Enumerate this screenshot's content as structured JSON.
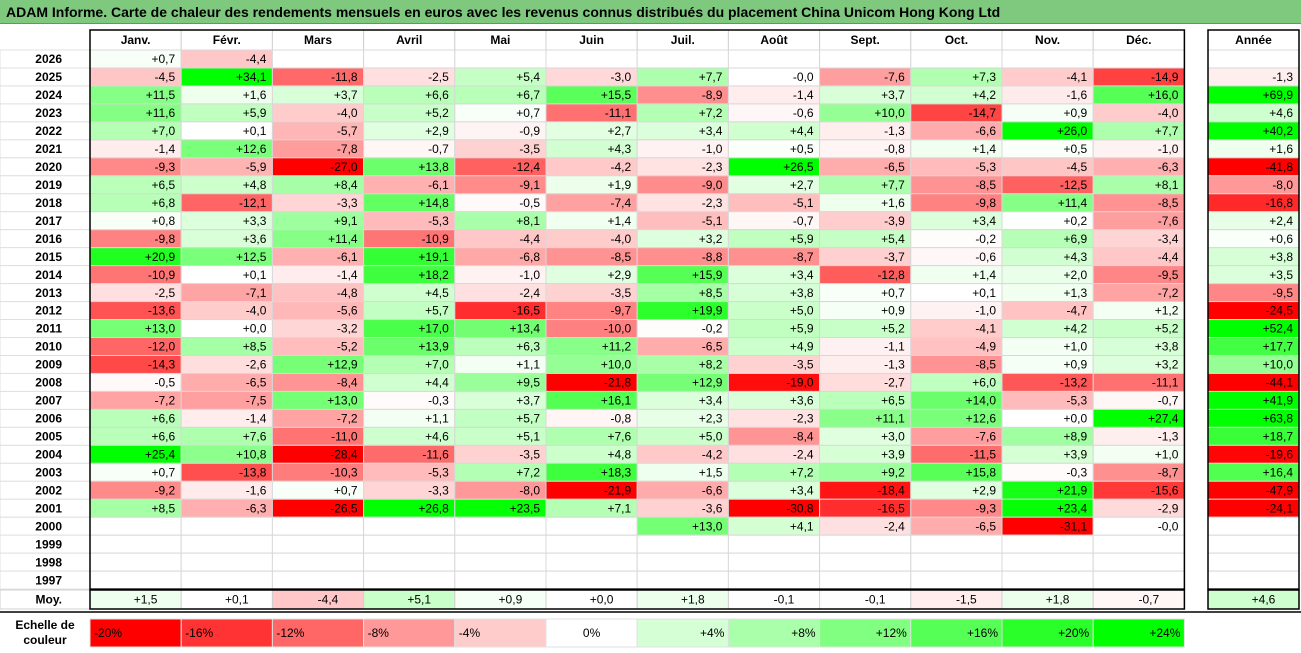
{
  "title": "ADAM Informe. Carte de chaleur des rendements mensuels en euros avec les revenus connus distribués du placement China Unicom Hong Kong Ltd",
  "chart_data": {
    "type": "heatmap",
    "months": [
      "Janv.",
      "Févr.",
      "Mars",
      "Avril",
      "Mai",
      "Juin",
      "Juil.",
      "Août",
      "Sept.",
      "Oct.",
      "Nov.",
      "Déc."
    ],
    "year_column_label": "Année",
    "rows": [
      {
        "year": "2026",
        "values": [
          "+0,7",
          "-4,4",
          "",
          "",
          "",
          "",
          "",
          "",
          "",
          "",
          "",
          ""
        ],
        "annual": ""
      },
      {
        "year": "2025",
        "values": [
          "-4,5",
          "+34,1",
          "-11,8",
          "-2,5",
          "+5,4",
          "-3,0",
          "+7,7",
          "-0,0",
          "-7,6",
          "+7,3",
          "-4,1",
          "-14,9"
        ],
        "annual": "-1,3"
      },
      {
        "year": "2024",
        "values": [
          "+11,5",
          "+1,6",
          "+3,7",
          "+6,6",
          "+6,7",
          "+15,5",
          "-8,9",
          "-1,4",
          "+3,7",
          "+4,2",
          "-1,6",
          "+16,0"
        ],
        "annual": "+69,9"
      },
      {
        "year": "2023",
        "values": [
          "+11,6",
          "+5,9",
          "-4,0",
          "+5,2",
          "+0,7",
          "-11,1",
          "+7,2",
          "-0,6",
          "+10,0",
          "-14,7",
          "+0,9",
          "-4,0"
        ],
        "annual": "+4,6"
      },
      {
        "year": "2022",
        "values": [
          "+7,0",
          "+0,1",
          "-5,7",
          "+2,9",
          "-0,9",
          "+2,7",
          "+3,4",
          "+4,4",
          "-1,3",
          "-6,6",
          "+26,0",
          "+7,7"
        ],
        "annual": "+40,2"
      },
      {
        "year": "2021",
        "values": [
          "-1,4",
          "+12,6",
          "-7,8",
          "-0,7",
          "-3,5",
          "+4,3",
          "-1,0",
          "+0,5",
          "-0,8",
          "+1,4",
          "+0,5",
          "-1,0"
        ],
        "annual": "+1,6"
      },
      {
        "year": "2020",
        "values": [
          "-9,3",
          "-5,9",
          "-27,0",
          "+13,8",
          "-12,4",
          "-4,2",
          "-2,3",
          "+26,5",
          "-6,5",
          "-5,3",
          "-4,5",
          "-6,3"
        ],
        "annual": "-41,8"
      },
      {
        "year": "2019",
        "values": [
          "+6,5",
          "+4,8",
          "+8,4",
          "-6,1",
          "-9,1",
          "+1,9",
          "-9,0",
          "+2,7",
          "+7,7",
          "-8,5",
          "-12,5",
          "+8,1"
        ],
        "annual": "-8,0"
      },
      {
        "year": "2018",
        "values": [
          "+6,8",
          "-12,1",
          "-3,3",
          "+14,8",
          "-0,5",
          "-7,4",
          "-2,3",
          "-5,1",
          "+1,6",
          "-9,8",
          "+11,4",
          "-8,5"
        ],
        "annual": "-16,8"
      },
      {
        "year": "2017",
        "values": [
          "+0,8",
          "+3,3",
          "+9,1",
          "-5,3",
          "+8,1",
          "+1,4",
          "-5,1",
          "-0,7",
          "-3,9",
          "+3,4",
          "+0,2",
          "-7,6"
        ],
        "annual": "+2,4"
      },
      {
        "year": "2016",
        "values": [
          "-9,8",
          "+3,6",
          "+11,4",
          "-10,9",
          "-4,4",
          "-4,0",
          "+3,2",
          "+5,9",
          "+5,4",
          "-0,2",
          "+6,9",
          "-3,4"
        ],
        "annual": "+0,6"
      },
      {
        "year": "2015",
        "values": [
          "+20,9",
          "+12,5",
          "-6,1",
          "+19,1",
          "-6,8",
          "-8,5",
          "-8,8",
          "-8,7",
          "-3,7",
          "-0,6",
          "+4,3",
          "-4,4"
        ],
        "annual": "+3,8"
      },
      {
        "year": "2014",
        "values": [
          "-10,9",
          "+0,1",
          "-1,4",
          "+18,2",
          "-1,0",
          "+2,9",
          "+15,9",
          "+3,4",
          "-12,8",
          "+1,4",
          "+2,0",
          "-9,5"
        ],
        "annual": "+3,5"
      },
      {
        "year": "2013",
        "values": [
          "-2,5",
          "-7,1",
          "-4,8",
          "+4,5",
          "-2,4",
          "-3,5",
          "+8,5",
          "+3,8",
          "+0,7",
          "+0,1",
          "+1,3",
          "-7,2"
        ],
        "annual": "-9,5"
      },
      {
        "year": "2012",
        "values": [
          "-13,6",
          "-4,0",
          "-5,6",
          "+5,7",
          "-16,5",
          "-9,7",
          "+19,9",
          "+5,0",
          "+0,9",
          "-1,0",
          "-4,7",
          "+1,2"
        ],
        "annual": "-24,5"
      },
      {
        "year": "2011",
        "values": [
          "+13,0",
          "+0,0",
          "-3,2",
          "+17,0",
          "+13,4",
          "-10,0",
          "-0,2",
          "+5,9",
          "+5,2",
          "-4,1",
          "+4,2",
          "+5,2"
        ],
        "annual": "+52,4"
      },
      {
        "year": "2010",
        "values": [
          "-12,0",
          "+8,5",
          "-5,2",
          "+13,9",
          "+6,3",
          "+11,2",
          "-6,5",
          "+4,9",
          "-1,1",
          "-4,9",
          "+1,0",
          "+3,8"
        ],
        "annual": "+17,7"
      },
      {
        "year": "2009",
        "values": [
          "-14,3",
          "-2,6",
          "+12,9",
          "+7,0",
          "+1,1",
          "+10,0",
          "+8,2",
          "-3,5",
          "-1,3",
          "-8,5",
          "+0,9",
          "+3,2"
        ],
        "annual": "+10,0"
      },
      {
        "year": "2008",
        "values": [
          "-0,5",
          "-6,5",
          "-8,4",
          "+4,4",
          "+9,5",
          "-21,8",
          "+12,9",
          "-19,0",
          "-2,7",
          "+6,0",
          "-13,2",
          "-11,1"
        ],
        "annual": "-44,1"
      },
      {
        "year": "2007",
        "values": [
          "-7,2",
          "-7,5",
          "+13,0",
          "-0,3",
          "+3,7",
          "+16,1",
          "+3,4",
          "+3,6",
          "+6,5",
          "+14,0",
          "-5,3",
          "-0,7"
        ],
        "annual": "+41,9"
      },
      {
        "year": "2006",
        "values": [
          "+6,6",
          "-1,4",
          "-7,2",
          "+1,1",
          "+5,7",
          "-0,8",
          "+2,3",
          "-2,3",
          "+11,1",
          "+12,6",
          "+0,0",
          "+27,4"
        ],
        "annual": "+63,8"
      },
      {
        "year": "2005",
        "values": [
          "+6,6",
          "+7,6",
          "-11,0",
          "+4,6",
          "+5,1",
          "+7,6",
          "+5,0",
          "-8,4",
          "+3,0",
          "-7,6",
          "+8,9",
          "-1,3"
        ],
        "annual": "+18,7"
      },
      {
        "year": "2004",
        "values": [
          "+25,4",
          "+10,8",
          "-28,4",
          "-11,6",
          "-3,5",
          "+4,8",
          "-4,2",
          "-2,4",
          "+3,9",
          "-11,5",
          "+3,9",
          "+1,0"
        ],
        "annual": "-19,6"
      },
      {
        "year": "2003",
        "values": [
          "+0,7",
          "-13,8",
          "-10,3",
          "-5,3",
          "+7,2",
          "+18,3",
          "+1,5",
          "+7,2",
          "+9,2",
          "+15,8",
          "-0,3",
          "-8,7"
        ],
        "annual": "+16,4"
      },
      {
        "year": "2002",
        "values": [
          "-9,2",
          "-1,6",
          "+0,7",
          "-3,3",
          "-8,0",
          "-21,9",
          "-6,6",
          "+3,4",
          "-18,4",
          "+2,9",
          "+21,9",
          "-15,6"
        ],
        "annual": "-47,9"
      },
      {
        "year": "2001",
        "values": [
          "+8,5",
          "-6,3",
          "-26,5",
          "+26,8",
          "+23,5",
          "+7,1",
          "-3,6",
          "-30,8",
          "-16,5",
          "-9,3",
          "+23,4",
          "-2,9"
        ],
        "annual": "-24,1"
      },
      {
        "year": "2000",
        "values": [
          "",
          "",
          "",
          "",
          "",
          "",
          "+13,0",
          "+4,1",
          "-2,4",
          "-6,5",
          "-31,1",
          "-0,0"
        ],
        "annual": ""
      },
      {
        "year": "1999",
        "values": [
          "",
          "",
          "",
          "",
          "",
          "",
          "",
          "",
          "",
          "",
          "",
          ""
        ],
        "annual": ""
      },
      {
        "year": "1998",
        "values": [
          "",
          "",
          "",
          "",
          "",
          "",
          "",
          "",
          "",
          "",
          "",
          ""
        ],
        "annual": ""
      },
      {
        "year": "1997",
        "values": [
          "",
          "",
          "",
          "",
          "",
          "",
          "",
          "",
          "",
          "",
          "",
          ""
        ],
        "annual": ""
      }
    ],
    "average": {
      "label": "Moy.",
      "values": [
        "+1,5",
        "+0,1",
        "-4,4",
        "+5,1",
        "+0,9",
        "+0,0",
        "+1,8",
        "-0,1",
        "-0,1",
        "-1,5",
        "+1,8",
        "-0,7"
      ],
      "annual": "+4,6"
    },
    "color_scale": {
      "label_line1": "Echelle de",
      "label_line2": "couleur",
      "stops": [
        "-20%",
        "-16%",
        "-12%",
        "-8%",
        "-4%",
        "0%",
        "+4%",
        "+8%",
        "+12%",
        "+16%",
        "+20%",
        "+24%"
      ]
    },
    "colors": {
      "negative_max": "#ff0000",
      "positive_max": "#00ff00",
      "neutral": "#ffffff",
      "title_bar": "#7fc97f"
    }
  }
}
